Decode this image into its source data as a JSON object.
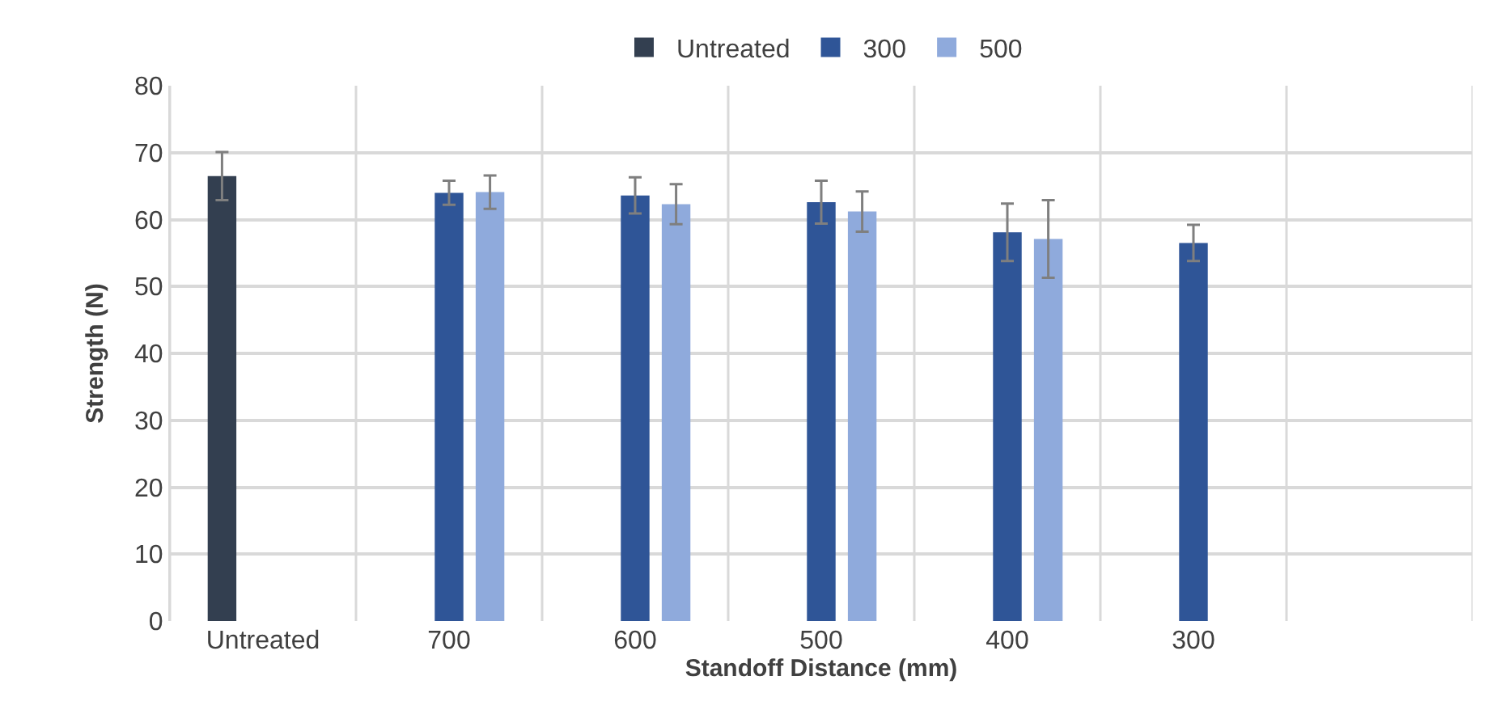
{
  "chart_data": {
    "type": "bar",
    "xlabel": "Standoff Distance (mm)",
    "ylabel": "Strength (N)",
    "categories": [
      "Untreated",
      "700",
      "600",
      "500",
      "400",
      "300",
      null
    ],
    "series": [
      {
        "name": "Untreated",
        "color": "#333f50",
        "values": [
          66.5,
          null,
          null,
          null,
          null,
          null,
          null
        ],
        "errors": [
          3.6,
          null,
          null,
          null,
          null,
          null,
          null
        ]
      },
      {
        "name": "300",
        "color": "#2f5597",
        "values": [
          null,
          64.0,
          63.6,
          62.6,
          58.1,
          56.5,
          null
        ],
        "errors": [
          null,
          1.8,
          2.7,
          3.2,
          4.3,
          2.7,
          null
        ]
      },
      {
        "name": "500",
        "color": "#8faadc",
        "values": [
          null,
          64.1,
          62.3,
          61.2,
          57.1,
          null,
          null
        ],
        "errors": [
          null,
          2.5,
          3.0,
          3.0,
          5.8,
          null,
          null
        ]
      }
    ],
    "ylim": [
      0,
      80
    ],
    "yticks": [
      0,
      10,
      20,
      30,
      40,
      50,
      60,
      70,
      80
    ],
    "grid": true,
    "legend": "top"
  }
}
